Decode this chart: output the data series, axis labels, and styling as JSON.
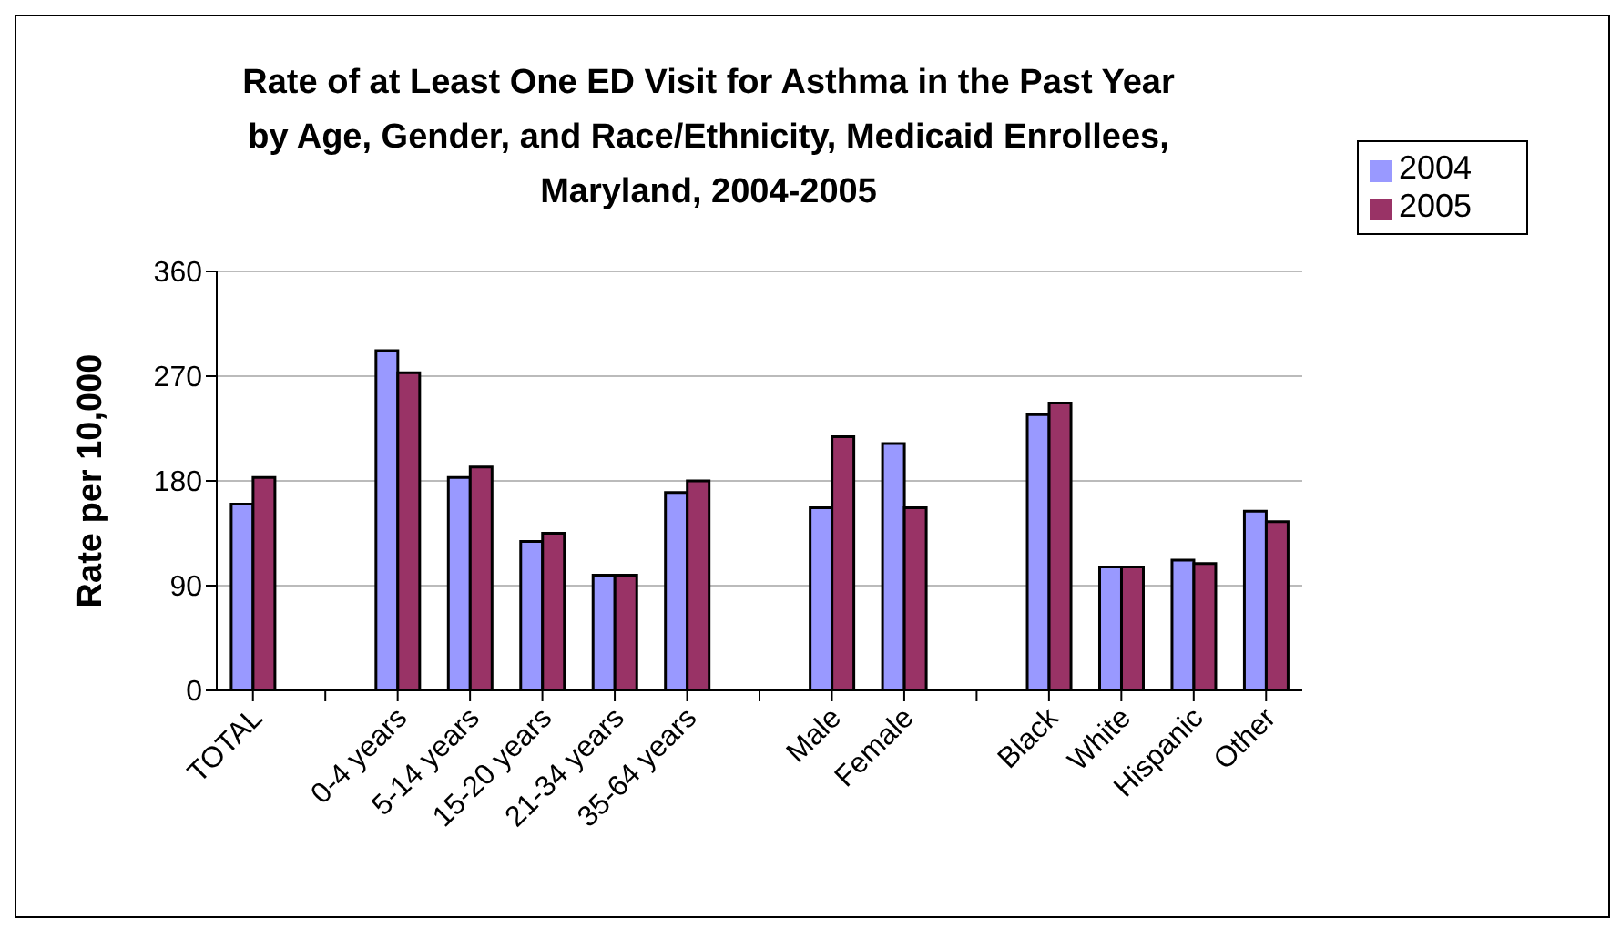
{
  "chart_data": {
    "type": "bar",
    "title": "Rate of at Least One ED Visit for Asthma in the Past Year by Age, Gender, and Race/Ethnicity, Medicaid Enrollees, Maryland, 2004-2005",
    "ylabel": "Rate per 10,000",
    "categories": [
      "TOTAL",
      null,
      "0-4 years",
      "5-14 years",
      "15-20 years",
      "21-34 years",
      "35-64 years",
      null,
      "Male",
      "Female",
      null,
      "Black",
      "White",
      "Hispanic",
      "Other"
    ],
    "series": [
      {
        "name": "2004",
        "color": "#9999ff",
        "values": [
          160,
          null,
          292,
          183,
          128,
          99,
          170,
          null,
          157,
          212,
          null,
          237,
          106,
          112,
          154
        ]
      },
      {
        "name": "2005",
        "color": "#993366",
        "values": [
          183,
          null,
          273,
          192,
          135,
          99,
          180,
          null,
          218,
          157,
          null,
          247,
          106,
          109,
          145
        ]
      }
    ],
    "ylim": [
      0,
      360
    ],
    "yticks": [
      0,
      90,
      180,
      270,
      360
    ],
    "grid": "y",
    "legend": "top right"
  }
}
